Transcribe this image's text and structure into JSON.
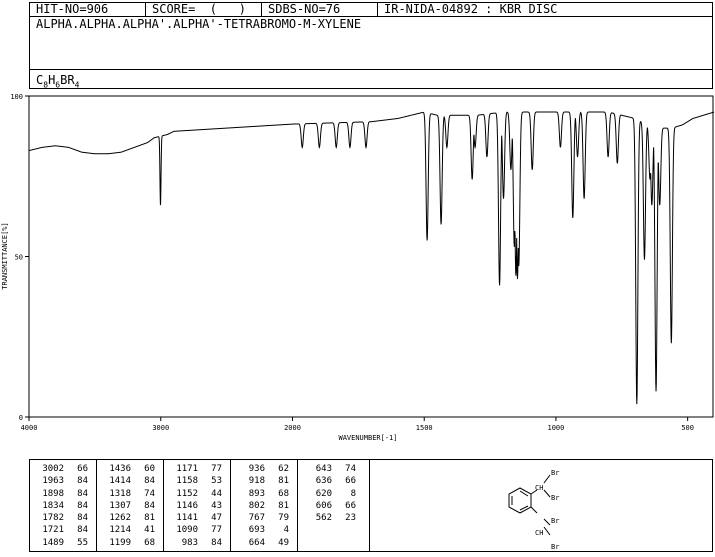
{
  "header": {
    "hit_no": "HIT-NO=906",
    "score": "SCORE=  (   )",
    "sdbs_no": "SDBS-NO=76",
    "ir_code": "IR-NIDA-04892 : KBR DISC"
  },
  "compound": {
    "name": "ALPHA.ALPHA.ALPHA'.ALPHA'-TETRABROMO-M-XYLENE",
    "formula_parts": [
      "C",
      "8",
      "H",
      "6",
      "BR",
      "4"
    ]
  },
  "chart_data": {
    "type": "line",
    "title": "",
    "xlabel": "WAVENUMBER[-1]",
    "ylabel": "TRANSMITTANCE[%]",
    "xlim": [
      4000,
      400
    ],
    "ylim": [
      0,
      100
    ],
    "xticks": [
      4000,
      3000,
      2000,
      1500,
      1000,
      500
    ],
    "yticks": [
      0,
      50,
      100
    ],
    "grid": false,
    "baseline": [
      [
        4000,
        83
      ],
      [
        3900,
        84
      ],
      [
        3800,
        84.5
      ],
      [
        3700,
        84
      ],
      [
        3600,
        82.5
      ],
      [
        3500,
        82
      ],
      [
        3400,
        82
      ],
      [
        3300,
        82.5
      ],
      [
        3200,
        84
      ],
      [
        3100,
        85.5
      ],
      [
        3050,
        87
      ],
      [
        2950,
        88
      ],
      [
        2900,
        89
      ],
      [
        2700,
        89.5
      ],
      [
        2500,
        90
      ],
      [
        2300,
        90.5
      ],
      [
        2100,
        91
      ],
      [
        1900,
        91.5
      ],
      [
        1700,
        92
      ],
      [
        1600,
        93
      ],
      [
        1550,
        94
      ],
      [
        1500,
        95
      ],
      [
        1450,
        94
      ],
      [
        1400,
        94
      ],
      [
        1300,
        94
      ],
      [
        1200,
        95
      ],
      [
        1100,
        95
      ],
      [
        1000,
        95
      ],
      [
        900,
        95
      ],
      [
        800,
        95
      ],
      [
        750,
        94
      ],
      [
        700,
        93
      ],
      [
        650,
        91
      ],
      [
        600,
        90
      ],
      [
        560,
        90
      ],
      [
        520,
        91
      ],
      [
        480,
        93
      ],
      [
        440,
        94
      ],
      [
        400,
        95
      ]
    ],
    "peaks": [
      {
        "x": 3002,
        "t": 66
      },
      {
        "x": 1963,
        "t": 84
      },
      {
        "x": 1898,
        "t": 84
      },
      {
        "x": 1834,
        "t": 84
      },
      {
        "x": 1782,
        "t": 84
      },
      {
        "x": 1721,
        "t": 84
      },
      {
        "x": 1489,
        "t": 55
      },
      {
        "x": 1436,
        "t": 60
      },
      {
        "x": 1414,
        "t": 84
      },
      {
        "x": 1318,
        "t": 74
      },
      {
        "x": 1307,
        "t": 84
      },
      {
        "x": 1262,
        "t": 81
      },
      {
        "x": 1214,
        "t": 41
      },
      {
        "x": 1199,
        "t": 68
      },
      {
        "x": 1171,
        "t": 77
      },
      {
        "x": 1158,
        "t": 53
      },
      {
        "x": 1152,
        "t": 44
      },
      {
        "x": 1146,
        "t": 43
      },
      {
        "x": 1141,
        "t": 47
      },
      {
        "x": 1090,
        "t": 77
      },
      {
        "x": 983,
        "t": 84
      },
      {
        "x": 936,
        "t": 62
      },
      {
        "x": 918,
        "t": 81
      },
      {
        "x": 893,
        "t": 68
      },
      {
        "x": 802,
        "t": 81
      },
      {
        "x": 767,
        "t": 79
      },
      {
        "x": 693,
        "t": 4
      },
      {
        "x": 664,
        "t": 49
      },
      {
        "x": 643,
        "t": 74
      },
      {
        "x": 636,
        "t": 66
      },
      {
        "x": 620,
        "t": 8
      },
      {
        "x": 606,
        "t": 66
      },
      {
        "x": 562,
        "t": 23
      }
    ]
  },
  "peak_table": [
    [
      [
        "3002",
        "66"
      ],
      [
        "1963",
        "84"
      ],
      [
        "1898",
        "84"
      ],
      [
        "1834",
        "84"
      ],
      [
        "1782",
        "84"
      ],
      [
        "1721",
        "84"
      ],
      [
        "1489",
        "55"
      ]
    ],
    [
      [
        "1436",
        "60"
      ],
      [
        "1414",
        "84"
      ],
      [
        "1318",
        "74"
      ],
      [
        "1307",
        "84"
      ],
      [
        "1262",
        "81"
      ],
      [
        "1214",
        "41"
      ],
      [
        "1199",
        "68"
      ]
    ],
    [
      [
        "1171",
        "77"
      ],
      [
        "1158",
        "53"
      ],
      [
        "1152",
        "44"
      ],
      [
        "1146",
        "43"
      ],
      [
        "1141",
        "47"
      ],
      [
        "1090",
        "77"
      ],
      [
        "983",
        "84"
      ]
    ],
    [
      [
        "936",
        "62"
      ],
      [
        "918",
        "81"
      ],
      [
        "893",
        "68"
      ],
      [
        "802",
        "81"
      ],
      [
        "767",
        "79"
      ],
      [
        "693",
        "4"
      ],
      [
        "664",
        "49"
      ]
    ],
    [
      [
        "643",
        "74"
      ],
      [
        "636",
        "66"
      ],
      [
        "620",
        "8"
      ],
      [
        "606",
        "66"
      ],
      [
        "562",
        "23"
      ]
    ]
  ],
  "structure": {
    "labels": [
      "Br",
      "CH",
      "Br",
      "Br",
      "CH",
      "Br"
    ]
  }
}
